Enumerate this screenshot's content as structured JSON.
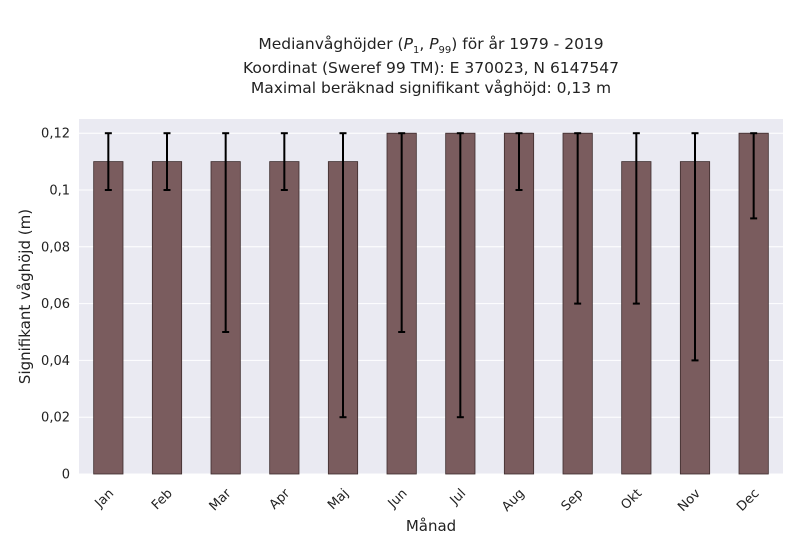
{
  "title_lines": [
    "Medianvåghöjder (P1, P99) för år 1979 - 2019",
    "Koordinat (Sweref 99 TM): E 370023, N 6147547",
    "Maximal beräknad signifikant våghöjd: 0,13 m"
  ],
  "colors": {
    "bar": "#7a5c5e",
    "bar_edge": "#3d2b2c",
    "error_bar": "#000000",
    "plot_bg": "#eaeaf2",
    "grid": "#ffffff"
  },
  "chart_data": {
    "type": "bar",
    "title": "Medianvåghöjder (P1, P99) för år 1979 - 2019",
    "xlabel": "Månad",
    "ylabel": "Signifikant våghöjd (m)",
    "ylim": [
      0,
      0.125
    ],
    "yticks": [
      0,
      0.02,
      0.04,
      0.06,
      0.08,
      0.1,
      0.12
    ],
    "ytick_labels": [
      "0",
      "0,02",
      "0,04",
      "0,06",
      "0,08",
      "0,1",
      "0,12"
    ],
    "grid": true,
    "categories": [
      "Jan",
      "Feb",
      "Mar",
      "Apr",
      "Maj",
      "Jun",
      "Jul",
      "Aug",
      "Sep",
      "Okt",
      "Nov",
      "Dec"
    ],
    "series": [
      {
        "values": [
          0.11,
          0.11,
          0.11,
          0.11,
          0.11,
          0.12,
          0.12,
          0.12,
          0.12,
          0.11,
          0.11,
          0.12
        ],
        "p1": [
          0.1,
          0.1,
          0.05,
          0.1,
          0.02,
          0.05,
          0.02,
          0.1,
          0.06,
          0.06,
          0.04,
          0.09
        ],
        "p99": [
          0.12,
          0.12,
          0.12,
          0.12,
          0.12,
          0.12,
          0.12,
          0.12,
          0.12,
          0.12,
          0.12,
          0.12
        ]
      }
    ]
  }
}
